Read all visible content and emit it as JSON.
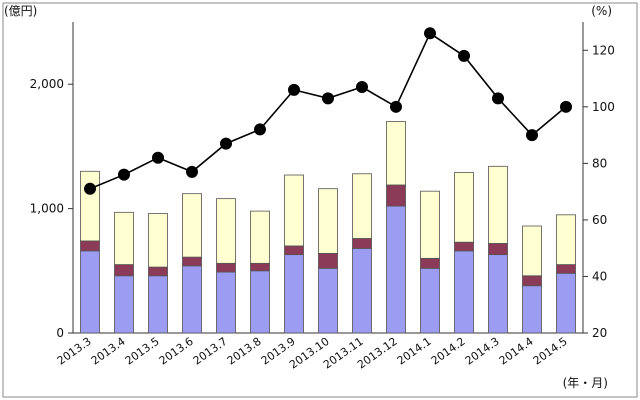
{
  "chart_data": {
    "type": "bar",
    "bar_mode": "stacked",
    "categories": [
      "2013.3",
      "2013.4",
      "2013.5",
      "2013.6",
      "2013.7",
      "2013.8",
      "2013.9",
      "2013.10",
      "2013.11",
      "2013.12",
      "2014.1",
      "2014.2",
      "2014.3",
      "2014.4",
      "2014.5"
    ],
    "series": [
      {
        "values": [
          660,
          460,
          460,
          540,
          490,
          500,
          630,
          520,
          680,
          1020,
          520,
          660,
          630,
          380,
          480
        ],
        "color": "#9c9cf2",
        "axis": "left"
      },
      {
        "values": [
          80,
          90,
          70,
          70,
          70,
          60,
          70,
          120,
          80,
          170,
          80,
          70,
          90,
          80,
          70
        ],
        "color": "#8b3a57",
        "axis": "left"
      },
      {
        "values": [
          560,
          420,
          430,
          510,
          520,
          420,
          570,
          520,
          520,
          510,
          540,
          560,
          620,
          400,
          400
        ],
        "color": "#fefed0",
        "axis": "left"
      },
      {
        "values": [
          71,
          76,
          82,
          77,
          87,
          92,
          106,
          103,
          107,
          100,
          126,
          118,
          103,
          90,
          100
        ],
        "color": "#000000",
        "axis": "right",
        "type": "line"
      }
    ],
    "y_left": {
      "unit": "(億円)",
      "ylim": [
        0,
        2500
      ],
      "ticks": [
        0,
        1000,
        2000
      ],
      "tick_labels": [
        "0",
        "1,000",
        "2,000"
      ]
    },
    "y_right": {
      "unit": "(%)",
      "ylim": [
        20,
        130
      ],
      "ticks": [
        20,
        40,
        60,
        80,
        100,
        120
      ],
      "tick_labels": [
        "20",
        "40",
        "60",
        "80",
        "100",
        "120"
      ]
    },
    "x_unit": "(年・月)",
    "grid": false,
    "legend": "none",
    "border_color": "#888888"
  }
}
